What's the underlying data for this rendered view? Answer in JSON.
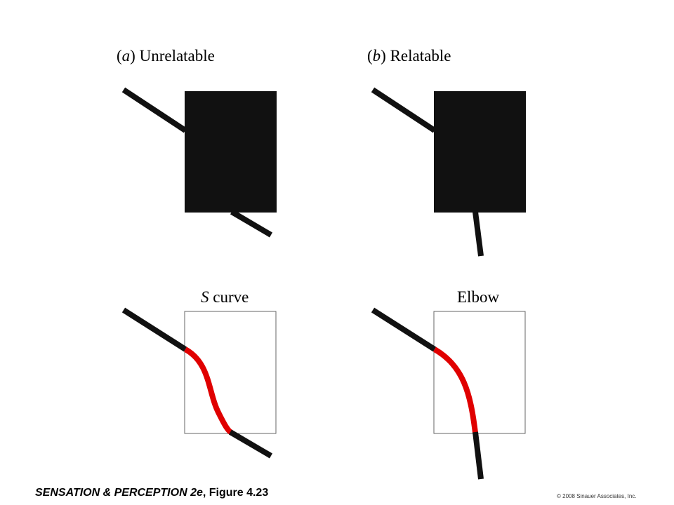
{
  "panels": {
    "a": {
      "tag": "a",
      "title": "Unrelatable",
      "completion_label_italic": "S",
      "completion_label_rest": " curve"
    },
    "b": {
      "tag": "b",
      "title": "Relatable",
      "completion_label": "Elbow"
    }
  },
  "footer": {
    "caption_main": "SENSATION & PERCEPTION 2e",
    "caption_figure": ", Figure 4.23",
    "copyright": "© 2008 Sinauer Associates, Inc."
  },
  "colors": {
    "occluder": "#111111",
    "edge": "#111111",
    "completion_curve": "#e00000",
    "outline": "#666666",
    "background": "#ffffff"
  }
}
